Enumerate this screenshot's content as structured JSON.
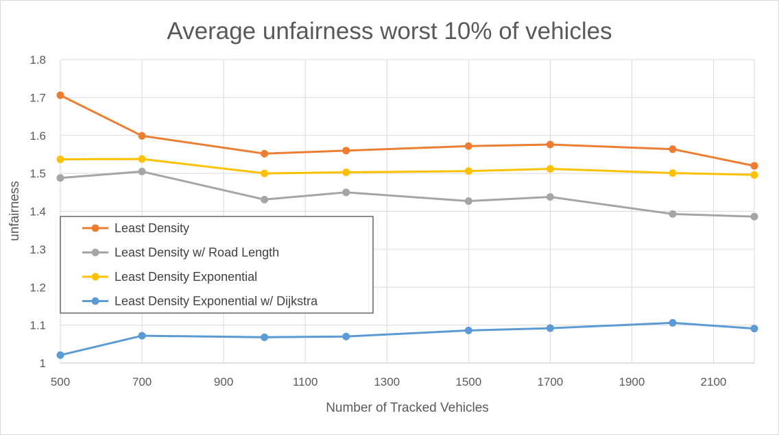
{
  "chart_data": {
    "type": "line",
    "title": "Average unfairness worst 10% of vehicles",
    "xlabel": "Number of Tracked Vehicles",
    "ylabel": "unfairness",
    "xlim": [
      500,
      2200
    ],
    "ylim": [
      1,
      1.8
    ],
    "x_ticks": [
      "500",
      "700",
      "900",
      "1100",
      "1300",
      "1500",
      "1700",
      "1900",
      "2100"
    ],
    "y_ticks": [
      "1",
      "1.1",
      "1.2",
      "1.3",
      "1.4",
      "1.5",
      "1.6",
      "1.7",
      "1.8"
    ],
    "x": [
      500,
      700,
      1000,
      1200,
      1500,
      1700,
      2000,
      2200
    ],
    "grid": true,
    "legend_position": "left",
    "series": [
      {
        "name": "Least Density",
        "color": "#ED7D31",
        "values": [
          1.706,
          1.599,
          1.552,
          1.56,
          1.572,
          1.576,
          1.564,
          1.52
        ]
      },
      {
        "name": "Least Density w/ Road Length",
        "color": "#A5A5A5",
        "values": [
          1.488,
          1.505,
          1.431,
          1.45,
          1.427,
          1.438,
          1.393,
          1.386
        ]
      },
      {
        "name": "Least Density Exponential",
        "color": "#FFC000",
        "values": [
          1.537,
          1.538,
          1.5,
          1.503,
          1.506,
          1.512,
          1.501,
          1.496
        ]
      },
      {
        "name": "Least Density Exponential w/ Dijkstra",
        "color": "#5B9BD5",
        "values": [
          1.021,
          1.072,
          1.068,
          1.07,
          1.086,
          1.092,
          1.106,
          1.091
        ]
      }
    ]
  }
}
